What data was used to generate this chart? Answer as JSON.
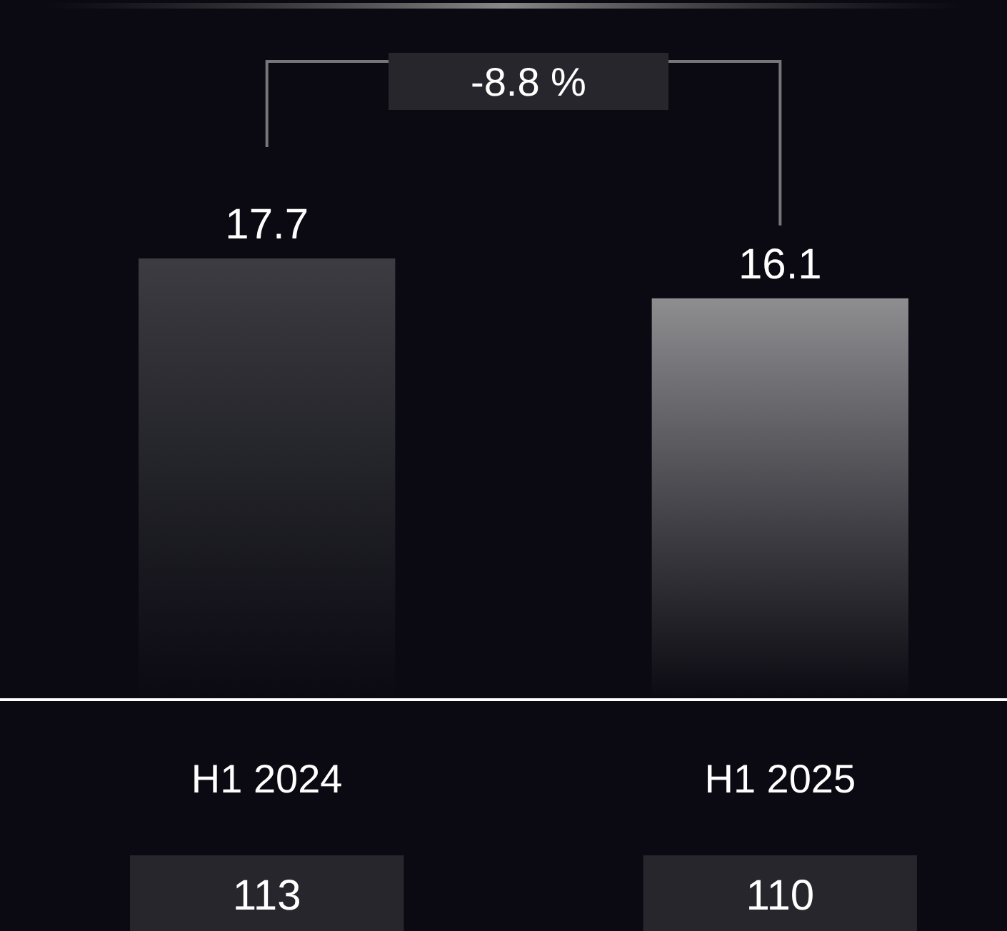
{
  "chart_data": {
    "type": "bar",
    "categories": [
      "H1 2024",
      "H1 2025"
    ],
    "values": [
      17.7,
      16.1
    ],
    "colors": [
      "#3c3c42",
      "#8e8d90"
    ],
    "data_labels": true,
    "annotations": [
      "-8.8 %",
      "113",
      "110"
    ]
  }
}
